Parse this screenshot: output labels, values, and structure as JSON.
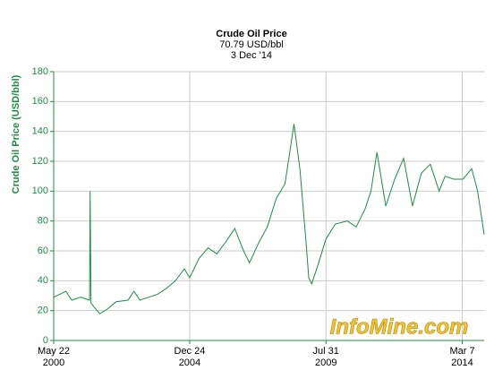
{
  "chart_data": {
    "type": "line",
    "title": "Crude Oil Price",
    "subtitle": "70.79 USD/bbl",
    "date": "3 Dec '14",
    "y_label": "Crude Oil Price (USD/bbl)",
    "watermark": "InfoMine.com",
    "grid": true,
    "xlim": [
      2000.39,
      2014.92
    ],
    "ylim": [
      0,
      180
    ],
    "yticks": [
      0,
      20,
      40,
      60,
      80,
      100,
      120,
      140,
      160,
      180
    ],
    "xticks": [
      {
        "value": 2000.39,
        "label": "May 22\n2000"
      },
      {
        "value": 2004.98,
        "label": "Dec 24\n2004"
      },
      {
        "value": 2009.58,
        "label": "Jul 31\n2009"
      },
      {
        "value": 2014.18,
        "label": "Mar 7\n2014"
      }
    ],
    "x": [
      2000.39,
      2000.6,
      2000.8,
      2001.0,
      2001.3,
      2001.6,
      2001.62,
      2001.65,
      2001.85,
      2001.95,
      2002.2,
      2002.5,
      2002.9,
      2003.1,
      2003.3,
      2003.6,
      2003.9,
      2004.2,
      2004.5,
      2004.8,
      2004.98,
      2005.3,
      2005.6,
      2005.9,
      2006.2,
      2006.5,
      2006.8,
      2007.0,
      2007.3,
      2007.6,
      2007.9,
      2008.2,
      2008.5,
      2008.7,
      2008.9,
      2009.0,
      2009.1,
      2009.3,
      2009.58,
      2009.9,
      2010.3,
      2010.6,
      2010.9,
      2011.1,
      2011.3,
      2011.6,
      2011.9,
      2012.2,
      2012.5,
      2012.8,
      2013.1,
      2013.4,
      2013.6,
      2013.9,
      2014.2,
      2014.5,
      2014.7,
      2014.92
    ],
    "series": [
      {
        "name": "Crude Oil Price",
        "color": "#1e8c46",
        "values": [
          29,
          31,
          33,
          27,
          29,
          27,
          100,
          25,
          20,
          18,
          21,
          26,
          27,
          33,
          27,
          29,
          31,
          35,
          40,
          48,
          42,
          55,
          62,
          58,
          66,
          75,
          60,
          52,
          65,
          76,
          95,
          105,
          145,
          115,
          68,
          42,
          38,
          50,
          68,
          78,
          80,
          76,
          88,
          100,
          126,
          90,
          108,
          122,
          90,
          112,
          118,
          100,
          110,
          108,
          108,
          115,
          100,
          71
        ]
      }
    ]
  }
}
